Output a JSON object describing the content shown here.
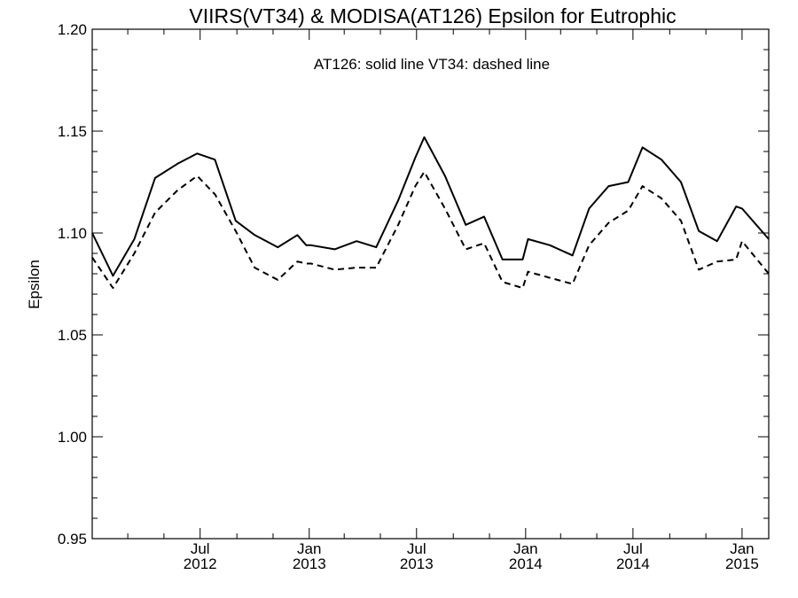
{
  "chart_data": {
    "type": "line",
    "title": "VIIRS(VT34) & MODISA(AT126)  Epsilon for Eutrophic",
    "annotation": "AT126: solid line   VT34: dashed line",
    "xlabel": "",
    "ylabel": "Epsilon",
    "ylim": [
      0.95,
      1.2
    ],
    "xlim": [
      "2012-01-01",
      "2015-02-15"
    ],
    "grid": false,
    "y_ticks": [
      "0.95",
      "1.00",
      "1.05",
      "1.10",
      "1.15",
      "1.20"
    ],
    "x_ticks": [
      {
        "date": "2012-07-01",
        "month": "Jul",
        "year": "2012"
      },
      {
        "date": "2013-01-01",
        "month": "Jan",
        "year": "2013"
      },
      {
        "date": "2013-07-01",
        "month": "Jul",
        "year": "2013"
      },
      {
        "date": "2014-01-01",
        "month": "Jan",
        "year": "2014"
      },
      {
        "date": "2014-07-01",
        "month": "Jul",
        "year": "2014"
      },
      {
        "date": "2015-01-01",
        "month": "Jan",
        "year": "2015"
      }
    ],
    "series": [
      {
        "name": "AT126",
        "line_style": "solid",
        "color": "#000000",
        "x": [
          "2012-01-01",
          "2012-02-05",
          "2012-03-12",
          "2012-04-16",
          "2012-05-24",
          "2012-06-26",
          "2012-07-26",
          "2012-08-30",
          "2012-10-01",
          "2012-11-09",
          "2012-12-12",
          "2012-12-27",
          "2013-01-04",
          "2013-02-13",
          "2013-03-22",
          "2013-04-24",
          "2013-05-31",
          "2013-06-29",
          "2013-07-14",
          "2013-08-18",
          "2013-09-22",
          "2013-10-23",
          "2013-11-23",
          "2013-12-27",
          "2014-01-05",
          "2014-02-11",
          "2014-03-21",
          "2014-04-18",
          "2014-05-21",
          "2014-06-23",
          "2014-07-17",
          "2014-08-18",
          "2014-09-20",
          "2014-10-20",
          "2014-11-20",
          "2014-12-22",
          "2015-01-01",
          "2015-02-15"
        ],
        "values": [
          1.1,
          1.079,
          1.097,
          1.127,
          1.134,
          1.139,
          1.136,
          1.106,
          1.099,
          1.093,
          1.099,
          1.094,
          1.094,
          1.092,
          1.096,
          1.093,
          1.116,
          1.137,
          1.147,
          1.128,
          1.104,
          1.108,
          1.087,
          1.087,
          1.097,
          1.094,
          1.089,
          1.112,
          1.123,
          1.125,
          1.142,
          1.136,
          1.125,
          1.101,
          1.096,
          1.113,
          1.112,
          1.097
        ]
      },
      {
        "name": "VT34",
        "line_style": "dashed",
        "color": "#000000",
        "x": [
          "2012-01-01",
          "2012-02-05",
          "2012-03-12",
          "2012-04-16",
          "2012-05-24",
          "2012-06-26",
          "2012-07-26",
          "2012-08-30",
          "2012-10-01",
          "2012-11-09",
          "2012-12-12",
          "2012-12-27",
          "2013-01-04",
          "2013-02-13",
          "2013-03-22",
          "2013-04-24",
          "2013-05-31",
          "2013-06-29",
          "2013-07-14",
          "2013-08-18",
          "2013-09-22",
          "2013-10-23",
          "2013-11-23",
          "2013-12-27",
          "2014-01-05",
          "2014-02-11",
          "2014-03-21",
          "2014-04-18",
          "2014-05-21",
          "2014-06-23",
          "2014-07-17",
          "2014-08-18",
          "2014-09-20",
          "2014-10-20",
          "2014-11-20",
          "2014-12-22",
          "2015-01-01",
          "2015-02-15"
        ],
        "values": [
          1.088,
          1.073,
          1.09,
          1.11,
          1.121,
          1.128,
          1.119,
          1.101,
          1.083,
          1.077,
          1.086,
          1.085,
          1.085,
          1.082,
          1.083,
          1.083,
          1.104,
          1.123,
          1.13,
          1.112,
          1.092,
          1.095,
          1.076,
          1.073,
          1.081,
          1.078,
          1.075,
          1.094,
          1.105,
          1.111,
          1.123,
          1.117,
          1.106,
          1.082,
          1.086,
          1.087,
          1.096,
          1.08
        ]
      }
    ]
  }
}
